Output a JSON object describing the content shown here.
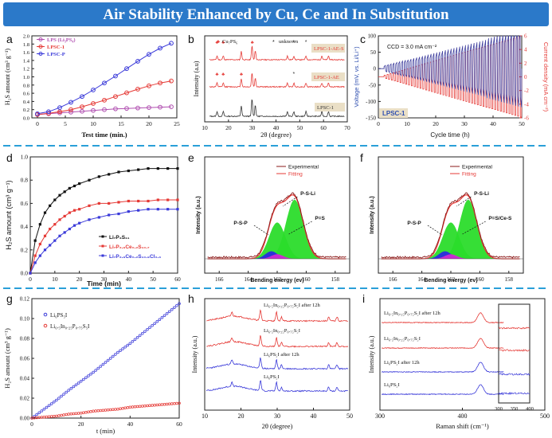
{
  "banner": {
    "title": "Air Stability Enhanced by Cu, Ce and In Substitution",
    "color": "#2b79c9"
  },
  "panels": {
    "a": {
      "letter": "a",
      "xlabel": "Test time (min.)",
      "ylabel": "H₂S amount (cm³ g⁻¹)"
    },
    "b": {
      "letter": "b",
      "xlabel": "2θ (degree)",
      "ylabel": "Intensity (a.u)",
      "legend_cu": "Cu₇PS₆",
      "legend_unknown": "unknown",
      "tags": [
        "LPSC-1-AE-S",
        "LPSC-1-AE",
        "LPSC-1"
      ]
    },
    "c": {
      "letter": "c",
      "xlabel": "Cycle time (h)",
      "ylabel_left": "Voltage (mV, vs. Li/Li⁺)",
      "ylabel_right": "Current density (mA cm⁻²)",
      "annotation": "CCD = 3.0 mA cm⁻²",
      "tag": "LPSC-1"
    },
    "d": {
      "letter": "d",
      "xlabel": "Time (min)",
      "ylabel": "H₂S amount (cm³ g⁻¹)"
    },
    "e": {
      "letter": "e",
      "xlabel": "Bending energy (ev)",
      "ylabel": "Intensity (a.u.)",
      "legend": [
        "Experimental",
        "Fitting"
      ],
      "peaks": [
        "P-S-Li",
        "P-S-P",
        "P=S"
      ]
    },
    "f": {
      "letter": "f",
      "xlabel": "Bending energy (ev)",
      "ylabel": "Intensity (a.u.)",
      "legend": [
        "Experimental",
        "Fitting"
      ],
      "peaks": [
        "P-S-Li",
        "P-S-P",
        "P=S/Ce-S"
      ]
    },
    "g": {
      "letter": "g",
      "xlabel": "t (min)",
      "ylabel": "H₂S amount (cm³ g⁻¹)"
    },
    "h": {
      "letter": "h",
      "xlabel": "2θ (degree)",
      "ylabel": "Intensity (a.u.)",
      "tags": [
        "Li₆.₅In₀.₂₅P₀.₇₅S₅I after 12h",
        "Li₆.₅In₀.₂₅P₀.₇₅S₅I",
        "Li₆PS₅I after 12h",
        "Li₆PS₅I"
      ]
    },
    "i": {
      "letter": "i",
      "xlabel": "Raman shift (cm⁻¹)",
      "ylabel": "Intensity (a.u.)",
      "tags": [
        "Li₆.₅In₀.₂₅P₀.₇₅S₅I after 12h",
        "Li₆.₅In₀.₂₅P₀.₇₅S₅I",
        "Li₆PS₅I after 12h",
        "Li₆PS₅I"
      ]
    }
  },
  "chart_data": [
    {
      "id": "a",
      "type": "line",
      "xlim": [
        -1,
        25
      ],
      "ylim": [
        0,
        2.0
      ],
      "xticks": [
        0,
        5,
        10,
        15,
        20,
        25
      ],
      "yticks": [
        0.0,
        0.2,
        0.4,
        0.6,
        0.8,
        1.0,
        1.2,
        1.4,
        1.6,
        1.8,
        2.0
      ],
      "x": [
        0,
        2,
        4,
        6,
        8,
        10,
        12,
        14,
        16,
        18,
        20,
        22,
        24
      ],
      "series": [
        {
          "name": "LPS (Li₃PS₄)",
          "color": "#b04fb0",
          "values": [
            0.08,
            0.1,
            0.12,
            0.14,
            0.16,
            0.18,
            0.2,
            0.22,
            0.23,
            0.24,
            0.25,
            0.26,
            0.27
          ]
        },
        {
          "name": "LPSC-1",
          "color": "#e53935",
          "values": [
            0.08,
            0.11,
            0.15,
            0.2,
            0.27,
            0.35,
            0.43,
            0.52,
            0.61,
            0.7,
            0.78,
            0.85,
            0.9
          ]
        },
        {
          "name": "LPSC-P",
          "color": "#3a3ad9",
          "values": [
            0.1,
            0.15,
            0.25,
            0.38,
            0.52,
            0.68,
            0.85,
            1.02,
            1.2,
            1.38,
            1.55,
            1.7,
            1.82
          ]
        }
      ]
    },
    {
      "id": "b",
      "type": "line",
      "xlim": [
        10,
        70
      ],
      "xticks": [
        10,
        20,
        30,
        40,
        50,
        60,
        70
      ],
      "peaks_2theta": [
        15.2,
        17.8,
        25.4,
        29.9,
        31.3,
        44.8,
        47.5,
        52.6,
        59.3,
        62.1
      ],
      "series": [
        {
          "name": "LPSC-1-AE-S",
          "color": "#e53935"
        },
        {
          "name": "LPSC-1-AE",
          "color": "#e53935"
        },
        {
          "name": "LPSC-1",
          "color": "#333333"
        }
      ]
    },
    {
      "id": "c",
      "type": "line",
      "xlim": [
        0,
        50
      ],
      "ylim_left": [
        -150,
        100
      ],
      "ylim_right": [
        -6,
        6
      ],
      "xticks": [
        0,
        10,
        20,
        30,
        40,
        50
      ],
      "yticks_left": [
        -150,
        -100,
        -50,
        0,
        50,
        100
      ],
      "yticks_right": [
        -6,
        -4,
        -2,
        0,
        2,
        4,
        6
      ],
      "series": [
        {
          "name": "Voltage",
          "color": "#3f3f9e"
        },
        {
          "name": "Current density",
          "color": "#e53935"
        }
      ]
    },
    {
      "id": "d",
      "type": "line",
      "xlim": [
        0,
        60
      ],
      "ylim": [
        0,
        1.0
      ],
      "xticks": [
        0,
        10,
        20,
        30,
        40,
        50,
        60
      ],
      "yticks": [
        0.0,
        0.2,
        0.4,
        0.6,
        0.8,
        1.0
      ],
      "x": [
        0,
        2,
        4,
        6,
        8,
        10,
        12,
        14,
        16,
        18,
        20,
        24,
        28,
        32,
        36,
        40,
        44,
        48,
        52,
        56,
        60
      ],
      "series": [
        {
          "name": "Li₇P₃S₁₁",
          "color": "#111111",
          "values": [
            0.0,
            0.28,
            0.42,
            0.52,
            0.58,
            0.63,
            0.67,
            0.7,
            0.73,
            0.75,
            0.77,
            0.8,
            0.83,
            0.85,
            0.87,
            0.88,
            0.89,
            0.9,
            0.9,
            0.9,
            0.9
          ]
        },
        {
          "name": "Li₇P₂.₉Ce₀.₂S₁₀.₇",
          "color": "#e53935",
          "values": [
            0.0,
            0.15,
            0.25,
            0.32,
            0.38,
            0.42,
            0.46,
            0.49,
            0.52,
            0.54,
            0.55,
            0.58,
            0.6,
            0.6,
            0.61,
            0.62,
            0.62,
            0.62,
            0.63,
            0.63,
            0.63
          ]
        },
        {
          "name": "Li₇P₂.₉Ce₀.₂S₁₀.₉Cl₀.₃",
          "color": "#3a3ad9",
          "values": [
            0.0,
            0.09,
            0.15,
            0.2,
            0.24,
            0.28,
            0.32,
            0.35,
            0.38,
            0.41,
            0.43,
            0.46,
            0.48,
            0.5,
            0.51,
            0.53,
            0.54,
            0.55,
            0.55,
            0.55,
            0.55
          ]
        }
      ]
    },
    {
      "id": "e",
      "type": "area",
      "xlim": [
        167,
        157
      ],
      "xticks": [
        166,
        164,
        162,
        160,
        158
      ]
    },
    {
      "id": "f",
      "type": "area",
      "xlim": [
        167,
        157
      ],
      "xticks": [
        166,
        164,
        162,
        160,
        158
      ]
    },
    {
      "id": "g",
      "type": "scatter",
      "xlim": [
        0,
        60
      ],
      "ylim": [
        0,
        0.12
      ],
      "xticks": [
        0,
        20,
        40,
        60
      ],
      "yticks": [
        0.0,
        0.02,
        0.04,
        0.06,
        0.08,
        0.1,
        0.12
      ],
      "x": [
        0,
        5,
        10,
        15,
        20,
        25,
        30,
        35,
        40,
        45,
        50,
        55,
        60
      ],
      "series": [
        {
          "name": "Li₆PS₅I",
          "color": "#3a3ad9",
          "values": [
            0.0,
            0.009,
            0.018,
            0.028,
            0.037,
            0.046,
            0.056,
            0.066,
            0.075,
            0.085,
            0.095,
            0.105,
            0.115
          ]
        },
        {
          "name": "Li₆.₅In₀.₂₅P₀.₇₅S₅I",
          "color": "#e53935",
          "values": [
            0.0,
            0.001,
            0.002,
            0.004,
            0.005,
            0.007,
            0.008,
            0.009,
            0.011,
            0.012,
            0.013,
            0.014,
            0.015
          ]
        }
      ]
    },
    {
      "id": "h",
      "type": "line",
      "xlim": [
        10,
        50
      ],
      "xticks": [
        10,
        20,
        30,
        40,
        50
      ],
      "peaks_2theta": [
        17.5,
        25.4,
        29.8,
        31.2,
        44.2,
        46.5
      ],
      "series": [
        {
          "name": "Li₆.₅In₀.₂₅P₀.₇₅S₅I after 12h",
          "color": "#e53935"
        },
        {
          "name": "Li₆.₅In₀.₂₅P₀.₇₅S₅I",
          "color": "#e53935"
        },
        {
          "name": "Li₆PS₅I after 12h",
          "color": "#3a3ad9"
        },
        {
          "name": "Li₆PS₅I",
          "color": "#3a3ad9"
        }
      ]
    },
    {
      "id": "i",
      "type": "line",
      "xlim": [
        300,
        500
      ],
      "xticks": [
        300,
        400,
        500
      ],
      "inset_xticks": [
        300,
        350,
        400
      ],
      "peak_cm1": 422,
      "series": [
        {
          "name": "Li₆.₅In₀.₂₅P₀.₇₅S₅I after 12h",
          "color": "#e53935"
        },
        {
          "name": "Li₆.₅In₀.₂₅P₀.₇₅S₅I",
          "color": "#e53935"
        },
        {
          "name": "Li₆PS₅I after 12h",
          "color": "#3a3ad9"
        },
        {
          "name": "Li₆PS₅I",
          "color": "#3a3ad9"
        }
      ]
    }
  ]
}
